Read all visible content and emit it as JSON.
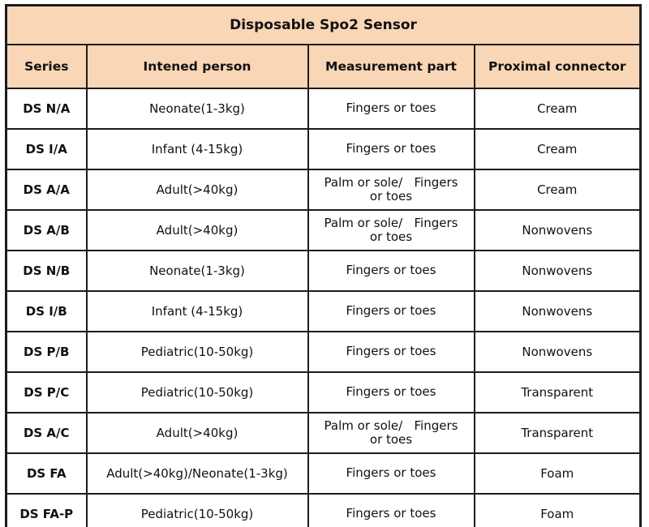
{
  "table": {
    "title": "Disposable Spo2 Sensor",
    "columns": [
      "Series",
      "Intened person",
      "Measurement part",
      "Proximal connector"
    ],
    "rows": [
      {
        "series": "DS N/A",
        "person": "Neonate(1-3kg)",
        "part": "Fingers or toes",
        "connector": "Cream"
      },
      {
        "series": "DS I/A",
        "person": "Infant (4-15kg)",
        "part": "Fingers or toes",
        "connector": "Cream"
      },
      {
        "series": "DS A/A",
        "person": "Adult(>40kg)",
        "part": "Palm or sole/   Fingers\nor toes",
        "connector": "Cream"
      },
      {
        "series": "DS A/B",
        "person": "Adult(>40kg)",
        "part": "Palm or sole/   Fingers\nor toes",
        "connector": "Nonwovens"
      },
      {
        "series": "DS N/B",
        "person": "Neonate(1-3kg)",
        "part": "Fingers or toes",
        "connector": "Nonwovens"
      },
      {
        "series": "DS I/B",
        "person": "Infant (4-15kg)",
        "part": "Fingers or toes",
        "connector": "Nonwovens"
      },
      {
        "series": "DS P/B",
        "person": "Pediatric(10-50kg)",
        "part": "Fingers or toes",
        "connector": "Nonwovens"
      },
      {
        "series": "DS P/C",
        "person": "Pediatric(10-50kg)",
        "part": "Fingers or toes",
        "connector": "Transparent"
      },
      {
        "series": "DS A/C",
        "person": "Adult(>40kg)",
        "part": "Palm or sole/   Fingers\nor toes",
        "connector": "Transparent"
      },
      {
        "series": "DS FA",
        "person": "Adult(>40kg)/Neonate(1-3kg)",
        "part": "Fingers or toes",
        "connector": "Foam"
      },
      {
        "series": "DS FA-P",
        "person": "Pediatric(10-50kg)",
        "part": "Fingers or toes",
        "connector": "Foam"
      }
    ],
    "colors": {
      "header_bg": "#F8D6B6",
      "row_bg": "#FFFFFF",
      "border": "#1C1C1C",
      "text": "#111111"
    }
  }
}
